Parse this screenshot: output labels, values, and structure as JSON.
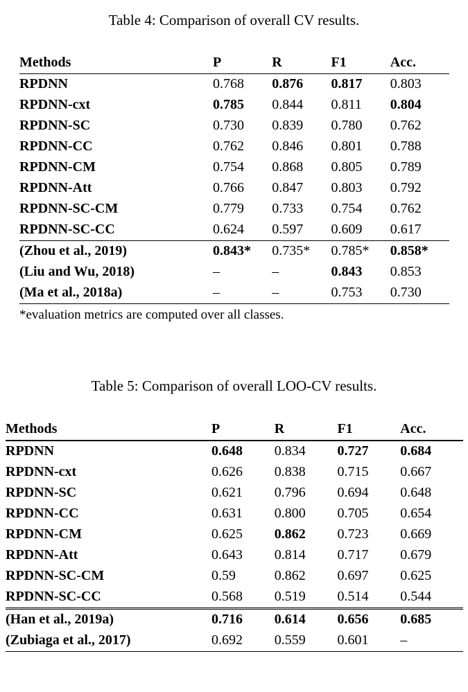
{
  "tables": [
    {
      "title": "Table 4: Comparison of overall CV results.",
      "headers": [
        "Methods",
        "P",
        "R",
        "F1",
        "Acc."
      ],
      "rows": [
        {
          "method": "RPDNN",
          "group": "proposed",
          "values": [
            "0.768",
            "0.876",
            "0.817",
            "0.803"
          ],
          "bold": [
            false,
            true,
            true,
            false
          ]
        },
        {
          "method": "RPDNN-cxt",
          "group": "proposed",
          "values": [
            "0.785",
            "0.844",
            "0.811",
            "0.804"
          ],
          "bold": [
            true,
            false,
            false,
            true
          ]
        },
        {
          "method": "RPDNN-SC",
          "group": "proposed",
          "values": [
            "0.730",
            "0.839",
            "0.780",
            "0.762"
          ],
          "bold": [
            false,
            false,
            false,
            false
          ]
        },
        {
          "method": "RPDNN-CC",
          "group": "proposed",
          "values": [
            "0.762",
            "0.846",
            "0.801",
            "0.788"
          ],
          "bold": [
            false,
            false,
            false,
            false
          ]
        },
        {
          "method": "RPDNN-CM",
          "group": "proposed",
          "values": [
            "0.754",
            "0.868",
            "0.805",
            "0.789"
          ],
          "bold": [
            false,
            false,
            false,
            false
          ]
        },
        {
          "method": "RPDNN-Att",
          "group": "proposed",
          "values": [
            "0.766",
            "0.847",
            "0.803",
            "0.792"
          ],
          "bold": [
            false,
            false,
            false,
            false
          ]
        },
        {
          "method": "RPDNN-SC-CM",
          "group": "proposed",
          "values": [
            "0.779",
            "0.733",
            "0.754",
            "0.762"
          ],
          "bold": [
            false,
            false,
            false,
            false
          ]
        },
        {
          "method": "RPDNN-SC-CC",
          "group": "proposed",
          "values": [
            "0.624",
            "0.597",
            "0.609",
            "0.617"
          ],
          "bold": [
            false,
            false,
            false,
            false
          ]
        },
        {
          "method": "(Zhou et al., 2019)",
          "group": "baseline",
          "values": [
            "0.843*",
            "0.735*",
            "0.785*",
            "0.858*"
          ],
          "bold": [
            true,
            false,
            false,
            true
          ]
        },
        {
          "method": "(Liu and Wu, 2018)",
          "group": "baseline",
          "values": [
            "–",
            "–",
            "0.843",
            "0.853"
          ],
          "bold": [
            false,
            false,
            true,
            false
          ]
        },
        {
          "method": "(Ma et al., 2018a)",
          "group": "baseline",
          "values": [
            "–",
            "–",
            "0.753",
            "0.730"
          ],
          "bold": [
            false,
            false,
            false,
            false
          ]
        }
      ],
      "footnote": "*evaluation metrics are computed over all classes."
    },
    {
      "title": "Table 5: Comparison of overall LOO-CV results.",
      "headers": [
        "Methods",
        "P",
        "R",
        "F1",
        "Acc."
      ],
      "rows": [
        {
          "method": "RPDNN",
          "group": "proposed",
          "values": [
            "0.648",
            "0.834",
            "0.727",
            "0.684"
          ],
          "bold": [
            true,
            false,
            true,
            true
          ]
        },
        {
          "method": "RPDNN-cxt",
          "group": "proposed",
          "values": [
            "0.626",
            "0.838",
            "0.715",
            "0.667"
          ],
          "bold": [
            false,
            false,
            false,
            false
          ]
        },
        {
          "method": "RPDNN-SC",
          "group": "proposed",
          "values": [
            "0.621",
            "0.796",
            "0.694",
            "0.648"
          ],
          "bold": [
            false,
            false,
            false,
            false
          ]
        },
        {
          "method": "RPDNN-CC",
          "group": "proposed",
          "values": [
            "0.631",
            "0.800",
            "0.705",
            "0.654"
          ],
          "bold": [
            false,
            false,
            false,
            false
          ]
        },
        {
          "method": "RPDNN-CM",
          "group": "proposed",
          "values": [
            "0.625",
            "0.862",
            "0.723",
            "0.669"
          ],
          "bold": [
            false,
            true,
            false,
            false
          ]
        },
        {
          "method": "RPDNN-Att",
          "group": "proposed",
          "values": [
            "0.643",
            "0.814",
            "0.717",
            "0.679"
          ],
          "bold": [
            false,
            false,
            false,
            false
          ]
        },
        {
          "method": "RPDNN-SC-CM",
          "group": "proposed",
          "values": [
            "0.59",
            "0.862",
            "0.697",
            "0.625"
          ],
          "bold": [
            false,
            false,
            false,
            false
          ]
        },
        {
          "method": "RPDNN-SC-CC",
          "group": "proposed",
          "values": [
            "0.568",
            "0.519",
            "0.514",
            "0.544"
          ],
          "bold": [
            false,
            false,
            false,
            false
          ]
        },
        {
          "method": "(Han et al., 2019a)",
          "group": "baseline",
          "values": [
            "0.716",
            "0.614",
            "0.656",
            "0.685"
          ],
          "bold": [
            true,
            true,
            true,
            true
          ]
        },
        {
          "method": "(Zubiaga et al., 2017)",
          "group": "baseline",
          "values": [
            "0.692",
            "0.559",
            "0.601",
            "–"
          ],
          "bold": [
            false,
            false,
            false,
            false
          ]
        }
      ],
      "footnote": ""
    }
  ]
}
